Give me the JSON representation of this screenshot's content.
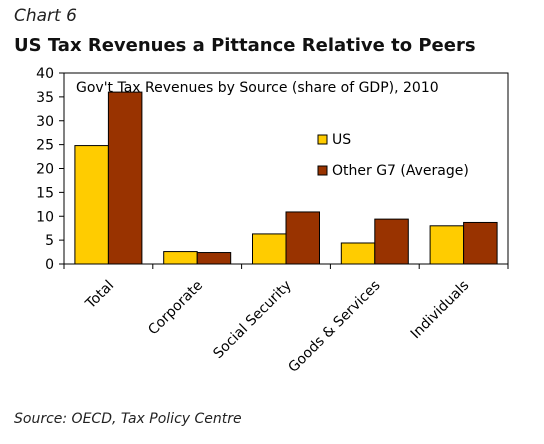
{
  "header": {
    "kicker": "Chart 6",
    "title": "US Tax Revenues a Pittance Relative to Peers"
  },
  "footer": {
    "source": "Source: OECD, Tax Policy Centre"
  },
  "colors": {
    "us": "#ffcc00",
    "other_g7": "#993300",
    "stroke": "#000000"
  },
  "chart_data": {
    "type": "bar",
    "title": "Gov't Tax Revenues by Source (share of GDP), 2010",
    "categories": [
      "Total",
      "Corporate",
      "Social Security",
      "Goods & Services",
      "Individuals"
    ],
    "series": [
      {
        "name": "US",
        "values": [
          24.8,
          2.6,
          6.3,
          4.4,
          8.0
        ]
      },
      {
        "name": "Other G7 (Average)",
        "values": [
          36.0,
          2.4,
          10.9,
          9.4,
          8.7
        ]
      }
    ],
    "ylim": [
      0,
      40
    ],
    "yticks": [
      0,
      5,
      10,
      15,
      20,
      25,
      30,
      35,
      40
    ],
    "grid": false,
    "legend_position": "right"
  }
}
